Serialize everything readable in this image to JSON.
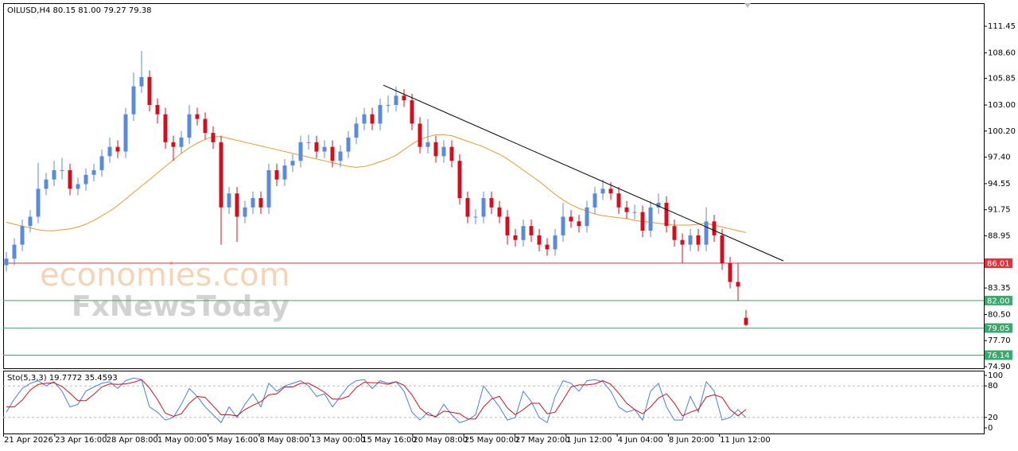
{
  "chart_data": {
    "type": "candlestick",
    "title": "OILUSD,H4  80.15 81.00 79.27 79.38",
    "up_color": "#5b8ad8",
    "down_color": "#d0101e",
    "open": [
      85.8,
      86.5,
      88,
      90,
      91,
      94,
      95,
      96,
      96,
      94,
      94.5,
      95.5,
      96,
      97.5,
      98.5,
      98,
      102,
      105,
      106,
      103,
      102,
      99,
      98.5,
      99.5,
      102,
      101.5,
      100,
      99,
      92,
      93.5,
      91,
      92,
      93,
      92,
      96,
      95,
      96.5,
      97,
      99,
      99,
      98,
      98.5,
      97,
      98,
      99.5,
      101,
      102,
      101,
      103,
      103,
      104,
      103.5,
      101,
      98.5,
      99,
      97.5,
      98.5,
      97,
      93,
      91,
      91,
      93,
      92,
      91,
      89,
      88.5,
      90,
      89,
      88,
      87.5,
      89,
      91,
      90.5,
      90,
      92,
      93.5,
      94,
      93.5,
      92,
      91.5,
      91.5,
      89.5,
      92,
      92.5,
      90,
      88.5,
      88,
      89,
      88,
      90.5,
      89,
      86,
      84,
      80.15
    ],
    "high": [
      87.2,
      88.7,
      90.7,
      91.7,
      96.8,
      95.7,
      97.0,
      97.3,
      96.7,
      95.2,
      96.2,
      96.7,
      98.2,
      99.5,
      99.2,
      102.7,
      106.5,
      108.8,
      106.7,
      103.7,
      102.7,
      99.7,
      100.2,
      103.0,
      102.7,
      102.2,
      100.7,
      99.7,
      94.2,
      94.2,
      92.7,
      93.7,
      93.7,
      96.7,
      96.7,
      97.2,
      97.7,
      99.7,
      99.8,
      99.7,
      99.2,
      99.2,
      98.7,
      100.2,
      101.7,
      102.7,
      102.7,
      103.7,
      104.0,
      105.0,
      104.7,
      104.2,
      101.7,
      101.5,
      99.7,
      99.2,
      99.2,
      97.7,
      93.7,
      91.8,
      93.7,
      93.7,
      92.7,
      91.7,
      89.7,
      90.7,
      90.7,
      89.7,
      88.7,
      89.7,
      92.5,
      91.7,
      91.2,
      92.7,
      94.2,
      95.0,
      94.7,
      94.2,
      92.7,
      92.3,
      92.2,
      92.7,
      93.5,
      93.2,
      90.7,
      89.2,
      89.7,
      89.7,
      92.0,
      91.2,
      89.7,
      86.7,
      86.0,
      81.0
    ],
    "low": [
      85.1,
      85.8,
      87.3,
      89.3,
      90.3,
      93.3,
      94.3,
      95.0,
      93.3,
      93.3,
      93.8,
      94.8,
      95.3,
      96.8,
      97.3,
      97.3,
      101.3,
      104.3,
      102.3,
      101.0,
      98.3,
      97.0,
      97.8,
      98.8,
      100.8,
      99.3,
      98.3,
      88.0,
      91.3,
      88.3,
      90.3,
      91.3,
      91.3,
      91.3,
      94.3,
      94.3,
      95.8,
      96.3,
      98.2,
      97.3,
      97.3,
      96.3,
      96.3,
      97.3,
      98.8,
      100.3,
      100.3,
      100.3,
      102.2,
      102.3,
      102.8,
      100.3,
      97.8,
      97.8,
      96.8,
      96.8,
      96.3,
      92.3,
      90.3,
      90.2,
      90.3,
      91.3,
      90.3,
      88.0,
      87.8,
      87.8,
      88.3,
      87.3,
      86.8,
      86.8,
      88.3,
      89.8,
      89.3,
      89.3,
      91.3,
      92.8,
      92.8,
      91.3,
      90.8,
      90.7,
      88.8,
      88.8,
      91.3,
      89.3,
      87.8,
      86.0,
      87.3,
      87.3,
      87.3,
      88.3,
      85.3,
      83.3,
      82.0,
      79.27
    ],
    "close": [
      86.5,
      88,
      90,
      91,
      94,
      95,
      96,
      96,
      94,
      94.5,
      95.5,
      96,
      97.5,
      98.5,
      98,
      102,
      105,
      106,
      103,
      102,
      99,
      98.5,
      99.5,
      102,
      101.5,
      100,
      99,
      92,
      93.5,
      91,
      92,
      93,
      92,
      96,
      95,
      96.5,
      97,
      99,
      99,
      98,
      98.5,
      97,
      98,
      99.5,
      101,
      102,
      101,
      103,
      103,
      104,
      103.5,
      101,
      98.5,
      99,
      97.5,
      98.5,
      97,
      93,
      91,
      91,
      93,
      92,
      91,
      89,
      88.5,
      90,
      89,
      88,
      87.5,
      89,
      91,
      90.5,
      90,
      92,
      93.5,
      94,
      93.5,
      92,
      91.5,
      91.5,
      89.5,
      92,
      92.5,
      90,
      88.5,
      88,
      89,
      88,
      90.5,
      89,
      86,
      84,
      83.5,
      79.38
    ],
    "ma": {
      "color": "#e39b2e",
      "values": [
        90.4,
        90.2,
        90.0,
        89.8,
        89.6,
        89.5,
        89.5,
        89.6,
        89.7,
        89.9,
        90.2,
        90.6,
        91.1,
        91.6,
        92.2,
        92.9,
        93.6,
        94.3,
        95.0,
        95.7,
        96.4,
        97.1,
        97.8,
        98.4,
        98.9,
        99.3,
        99.6,
        99.6,
        99.4,
        99.2,
        99.0,
        98.8,
        98.6,
        98.4,
        98.2,
        98.0,
        97.8,
        97.6,
        97.4,
        97.2,
        97.0,
        96.8,
        96.6,
        96.4,
        96.3,
        96.4,
        96.6,
        96.9,
        97.2,
        97.6,
        98.2,
        98.8,
        99.3,
        99.6,
        99.8,
        99.8,
        99.7,
        99.4,
        99.1,
        98.8,
        98.5,
        98.1,
        97.7,
        97.2,
        96.6,
        96.0,
        95.4,
        94.8,
        94.1,
        93.4,
        92.8,
        92.3,
        91.9,
        91.6,
        91.3,
        91.1,
        91.0,
        90.9,
        90.8,
        90.6,
        90.5,
        90.4,
        90.3,
        90.2,
        90.1,
        90.1,
        90.1,
        90.2,
        90.3,
        90.1,
        89.9,
        89.7,
        89.5,
        89.3
      ]
    },
    "ylim": [
      74.73,
      113.93
    ],
    "yticks": [
      111.45,
      {
        "value": 108.6,
        "label": "108.60"
      },
      105.85,
      {
        "value": 103,
        "label": "103.00"
      },
      {
        "value": 100.2,
        "label": "100.20"
      },
      {
        "value": 97.4,
        "label": "97.40"
      },
      94.55,
      91.75,
      88.95,
      83.35,
      {
        "value": 80.5,
        "label": "80.50"
      },
      {
        "value": 77.7,
        "label": "77.70"
      },
      {
        "value": 74.9,
        "label": "74.90"
      }
    ],
    "levels": [
      {
        "value": 86.01,
        "color": "#e0303a"
      },
      {
        "value": 82,
        "label": "82.00",
        "color": "#3aa76d"
      },
      {
        "value": 79.05,
        "color": "#3aa76d"
      },
      {
        "value": 76.14,
        "color": "#3aa76d"
      }
    ],
    "trendline": {
      "start": 105.13,
      "end": 86.26,
      "color": "#000000"
    },
    "xtick_labels": [
      "21 Apr 2026",
      "23 Apr 16:00",
      "28 Apr 08:00",
      "1 May 00:00",
      "5 May 16:00",
      "8 May 08:00",
      "13 May 00:00",
      "15 May 16:00",
      "20 May 08:00",
      "25 May 00:00",
      "27 May 20:00",
      "1 Jun 12:00",
      "4 Jun 04:00",
      "8 Jun 20:00",
      "11 Jun 12:00"
    ],
    "watermarks": [
      "economies.com",
      "FxNewsToday"
    ],
    "stochastic": {
      "title": "Sto(5,3,3) 19.7772 35.4593",
      "ylim": [
        -10.6,
        109.1
      ],
      "yticks": [
        0,
        20,
        80,
        100
      ],
      "levels": [
        20,
        80
      ],
      "main": {
        "color": "#4a80d8",
        "values": [
          30,
          55,
          75,
          85,
          90,
          80,
          88,
          70,
          40,
          45,
          70,
          78,
          85,
          88,
          75,
          90,
          95,
          92,
          40,
          30,
          15,
          20,
          45,
          75,
          60,
          40,
          25,
          10,
          40,
          20,
          45,
          65,
          40,
          85,
          70,
          80,
          85,
          90,
          80,
          60,
          65,
          40,
          60,
          80,
          90,
          92,
          75,
          90,
          85,
          88,
          70,
          30,
          15,
          30,
          20,
          45,
          25,
          10,
          15,
          25,
          80,
          60,
          40,
          15,
          20,
          70,
          50,
          20,
          10,
          60,
          90,
          85,
          70,
          90,
          92,
          88,
          70,
          40,
          30,
          35,
          15,
          70,
          85,
          40,
          15,
          15,
          60,
          30,
          88,
          70,
          15,
          20,
          35,
          19.7772
        ]
      },
      "signal": {
        "color": "#d0101e",
        "values": [
          40,
          40,
          53,
          72,
          83,
          85,
          86,
          79,
          66,
          52,
          52,
          64,
          78,
          84,
          83,
          84,
          87,
          92,
          76,
          54,
          28,
          22,
          27,
          47,
          60,
          58,
          42,
          25,
          25,
          23,
          35,
          43,
          50,
          63,
          65,
          78,
          78,
          85,
          85,
          77,
          68,
          55,
          55,
          60,
          77,
          87,
          86,
          86,
          83,
          88,
          81,
          63,
          38,
          25,
          22,
          32,
          30,
          27,
          17,
          17,
          40,
          55,
          60,
          38,
          25,
          35,
          47,
          47,
          27,
          30,
          53,
          78,
          82,
          82,
          84,
          90,
          83,
          66,
          47,
          35,
          27,
          40,
          57,
          65,
          47,
          23,
          30,
          35,
          59,
          63,
          58,
          35,
          23,
          35.4593
        ]
      }
    }
  }
}
